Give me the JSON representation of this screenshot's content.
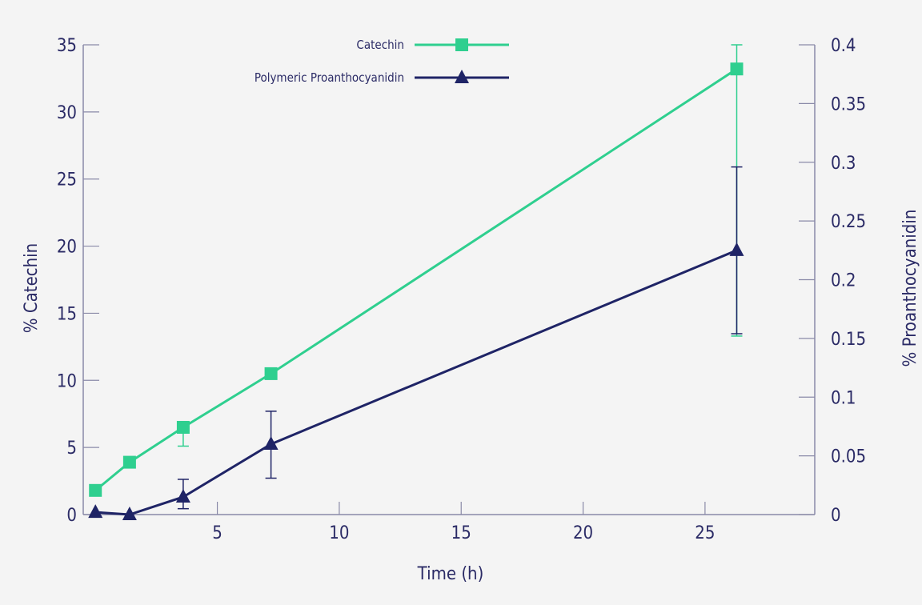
{
  "chart_data": {
    "type": "line",
    "title": "",
    "xlabel": "Time (h)",
    "ylabel_left": "% Catechin",
    "ylabel_right": "% Proanthocyanidin",
    "xlim": [
      -0.5,
      29.5
    ],
    "x_ticks": [
      5,
      10,
      15,
      20,
      25
    ],
    "ylim_left": [
      0,
      35
    ],
    "y_ticks_left": [
      0,
      5,
      10,
      15,
      20,
      25,
      30,
      35
    ],
    "ylim_right": [
      0,
      0.4
    ],
    "y_ticks_right": [
      "0",
      "0.05",
      "0.1",
      "0.15",
      "0.2",
      "0.25",
      "0.3",
      "0.35",
      "0.4"
    ],
    "grid": false,
    "legend_position": "top-center",
    "series": [
      {
        "name": "Catechin",
        "axis": "left",
        "marker": "square",
        "color": "#2fcf8f",
        "points": [
          {
            "x": 0,
            "y": 1.8
          },
          {
            "x": 1.4,
            "y": 3.9
          },
          {
            "x": 3.6,
            "y": 6.5,
            "err_low": 5.1,
            "err_high": 6.5
          },
          {
            "x": 7.2,
            "y": 10.5
          },
          {
            "x": 26.3,
            "y": 33.2,
            "err_low": 13.3,
            "err_high": 35
          }
        ]
      },
      {
        "name": "Polymeric Proanthocyanidin",
        "axis": "right",
        "marker": "triangle",
        "color": "#1f2466",
        "points": [
          {
            "x": 0,
            "y": 0.002
          },
          {
            "x": 1.4,
            "y": 0.0
          },
          {
            "x": 3.6,
            "y": 0.015,
            "err_low": 0.005,
            "err_high": 0.03
          },
          {
            "x": 7.2,
            "y": 0.06,
            "err_low": 0.031,
            "err_high": 0.088
          },
          {
            "x": 26.3,
            "y": 0.225,
            "err_low": 0.154,
            "err_high": 0.296
          }
        ]
      }
    ]
  }
}
